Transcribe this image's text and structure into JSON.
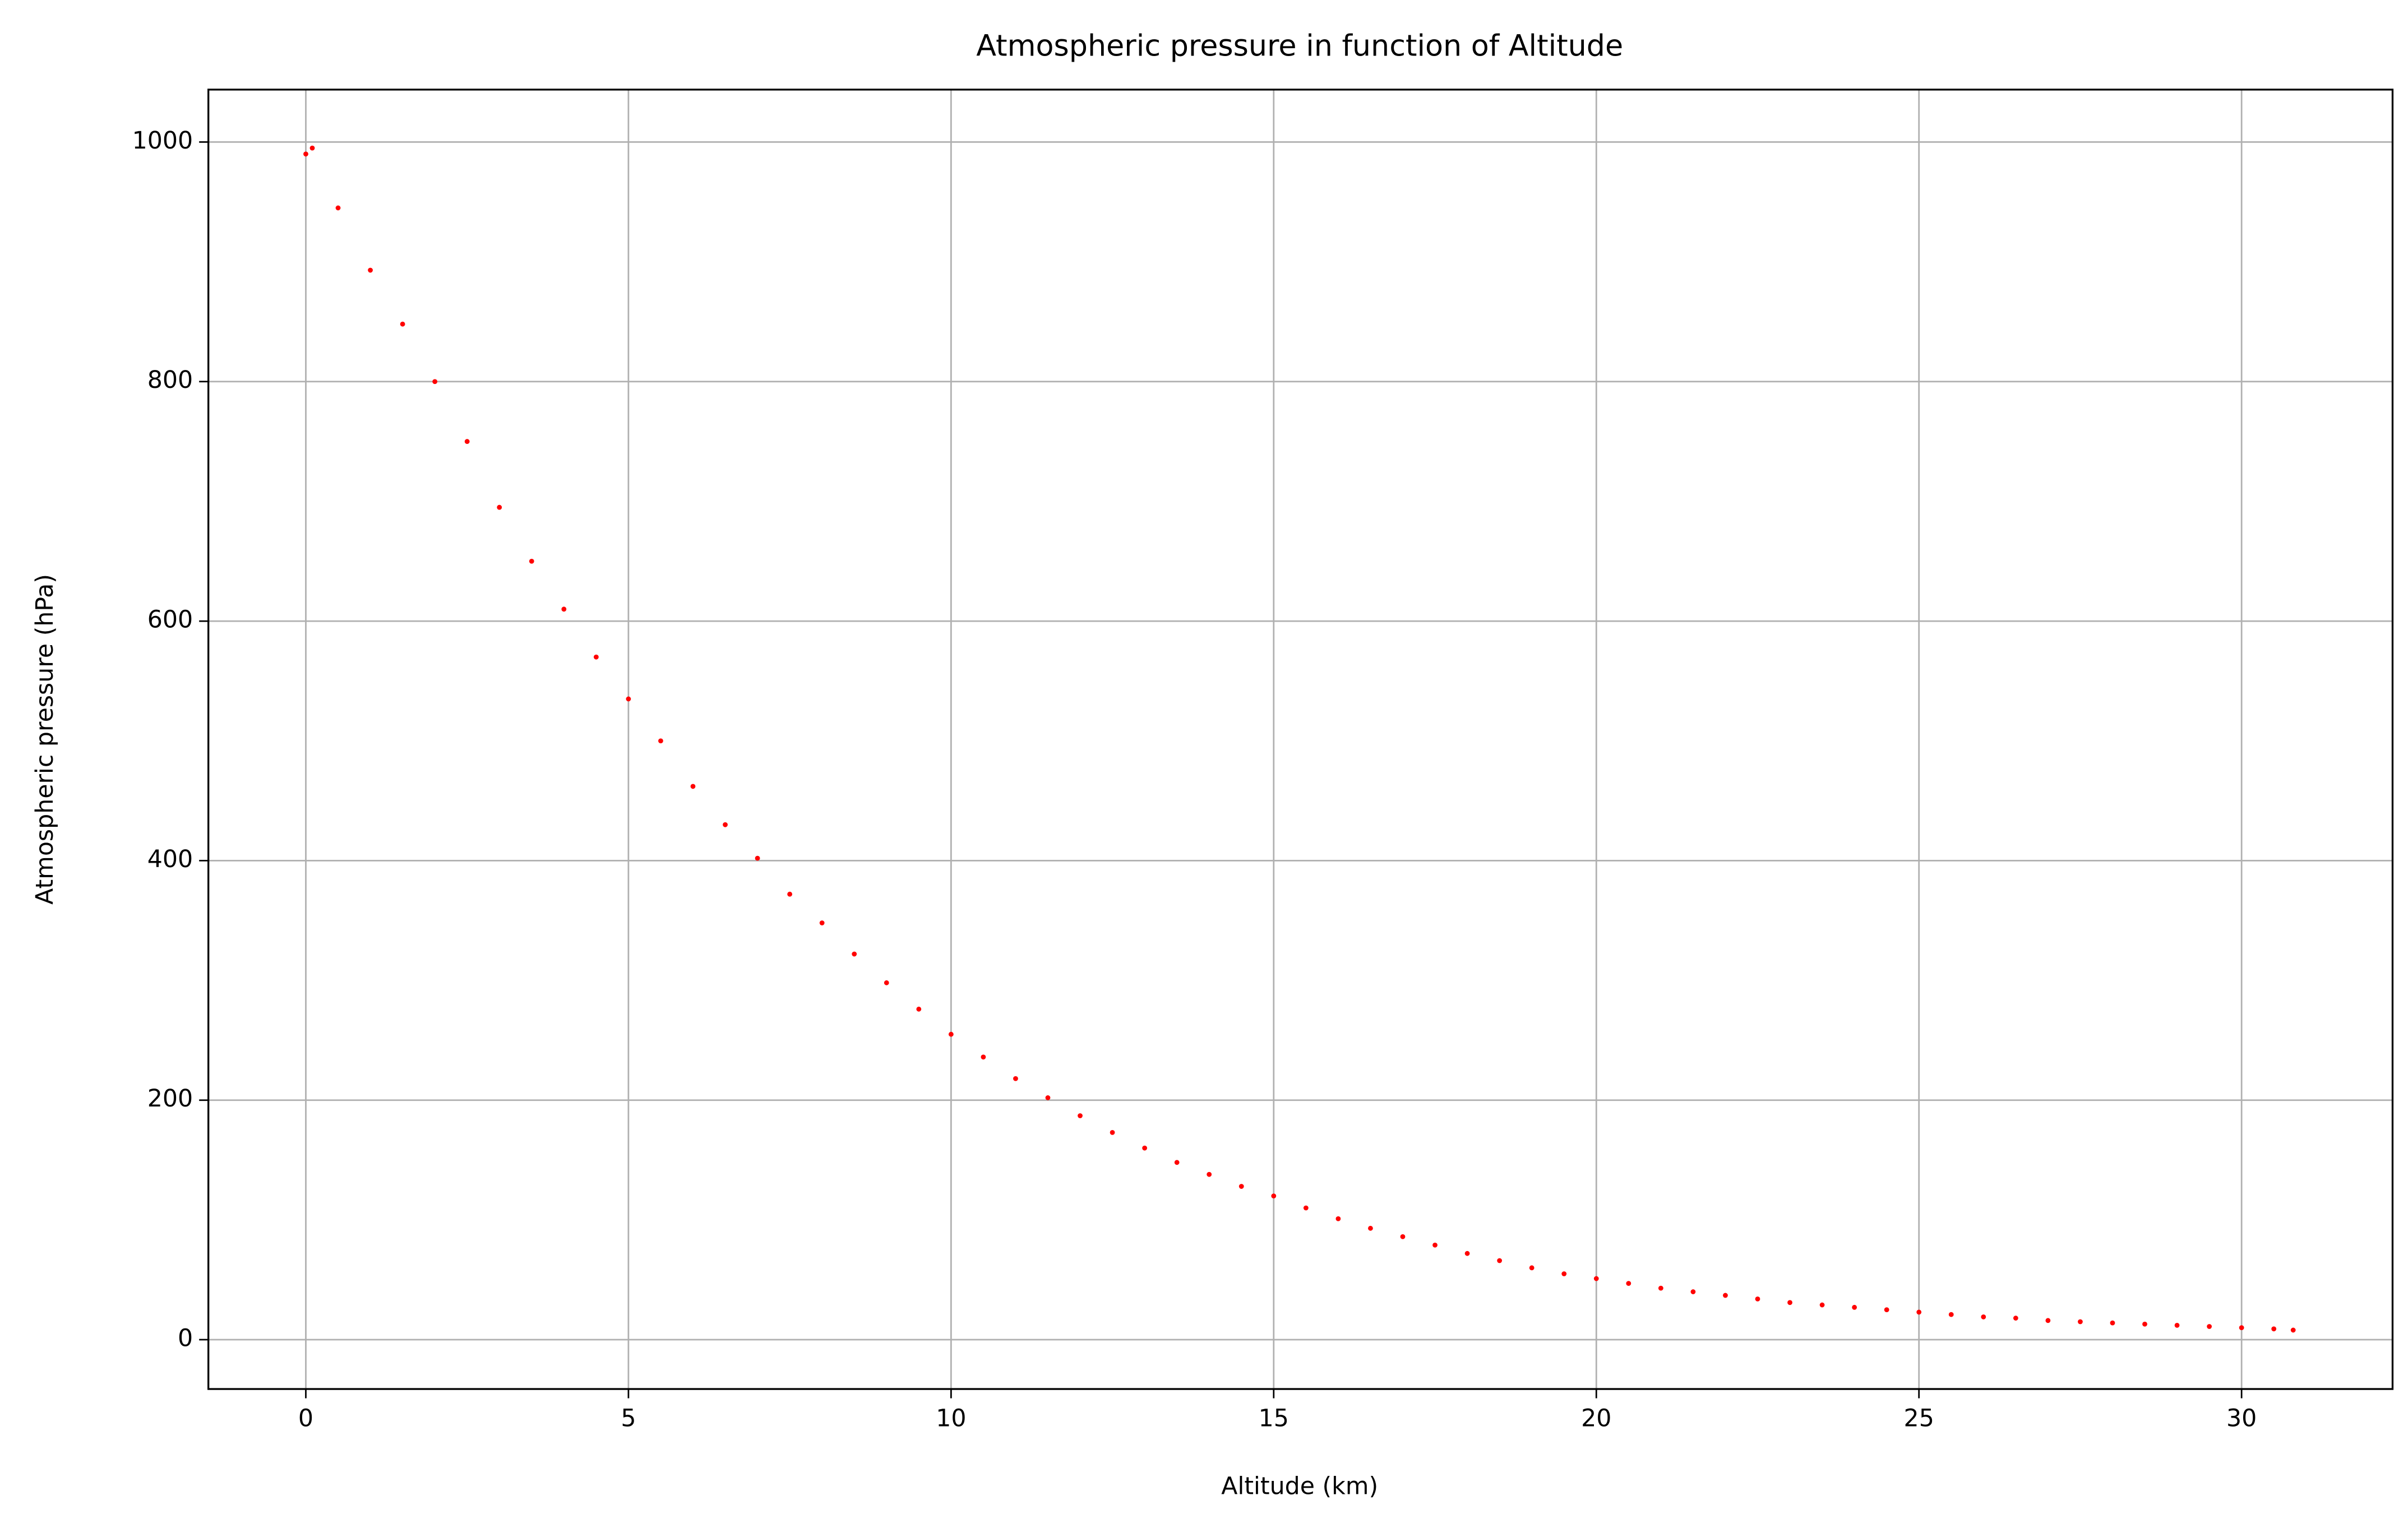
{
  "chart_data": {
    "type": "scatter",
    "title": "Atmospheric pressure in function of Altitude",
    "x_label": "Altitude (km)",
    "y_label": "Atmospheric pressure (hPa)",
    "color": "#ff0000",
    "grid": true,
    "xlim": [
      -1.51,
      32.34
    ],
    "ylim": [
      -41.2,
      1043.8
    ],
    "xticks": [
      0,
      5,
      10,
      15,
      20,
      25,
      30
    ],
    "yticks": [
      0,
      200,
      400,
      600,
      800,
      1000
    ],
    "x": [
      0,
      0.1,
      0.5,
      1,
      1.5,
      2,
      2.5,
      3,
      3.5,
      4,
      4.5,
      5,
      5.5,
      6,
      6.5,
      7,
      7.5,
      8,
      8.5,
      9,
      9.5,
      10,
      10.5,
      11,
      11.5,
      12,
      12.5,
      13,
      13.5,
      14,
      14.5,
      15,
      15.5,
      16,
      16.5,
      17,
      17.5,
      18,
      18.5,
      19,
      19.5,
      20,
      20.5,
      21,
      21.5,
      22,
      22.5,
      23,
      23.5,
      24,
      24.5,
      25,
      25.5,
      26,
      26.5,
      27,
      27.5,
      28,
      28.5,
      29,
      29.5,
      30,
      30.5,
      30.8
    ],
    "values": [
      990,
      995,
      945,
      893,
      848,
      800,
      750,
      695,
      650,
      610,
      570,
      535,
      500,
      462,
      430,
      402,
      372,
      348,
      322,
      298,
      276,
      255,
      236,
      218,
      202,
      187,
      173,
      160,
      148,
      138,
      128,
      120,
      110,
      101,
      93,
      86,
      79,
      72,
      66,
      60,
      55,
      51,
      47,
      43,
      40,
      37,
      34,
      31,
      29,
      27,
      25,
      23,
      21,
      19,
      18,
      16,
      15,
      14,
      13,
      12,
      11,
      10,
      9,
      8
    ]
  }
}
